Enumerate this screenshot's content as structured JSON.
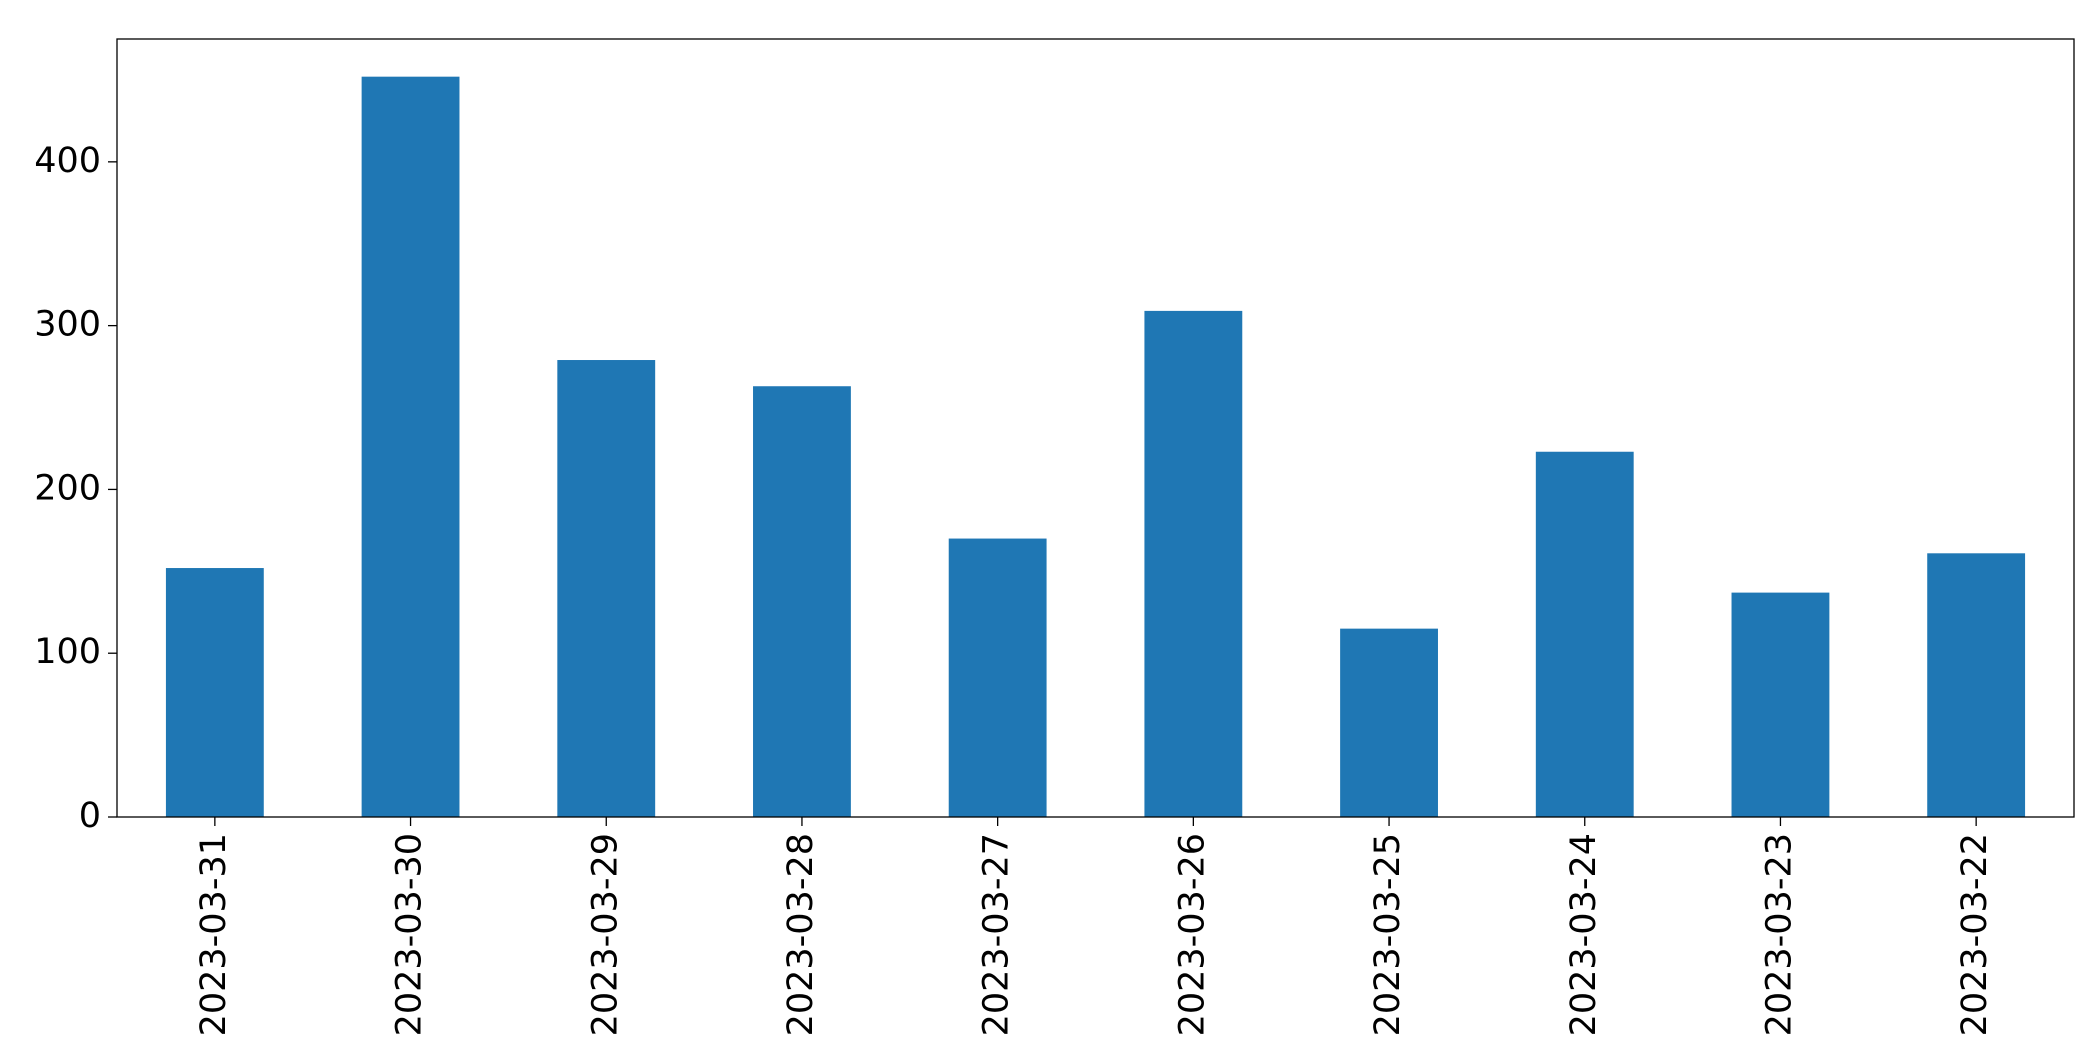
{
  "chart_data": {
    "type": "bar",
    "categories": [
      "2023-03-31",
      "2023-03-30",
      "2023-03-29",
      "2023-03-28",
      "2023-03-27",
      "2023-03-26",
      "2023-03-25",
      "2023-03-24",
      "2023-03-23",
      "2023-03-22"
    ],
    "values": [
      152,
      452,
      279,
      263,
      170,
      309,
      115,
      223,
      137,
      161
    ],
    "color": "#1f77b4",
    "ylim": [
      0,
      475
    ],
    "yticks": [
      0,
      100,
      200,
      300,
      400
    ],
    "grid": false
  }
}
